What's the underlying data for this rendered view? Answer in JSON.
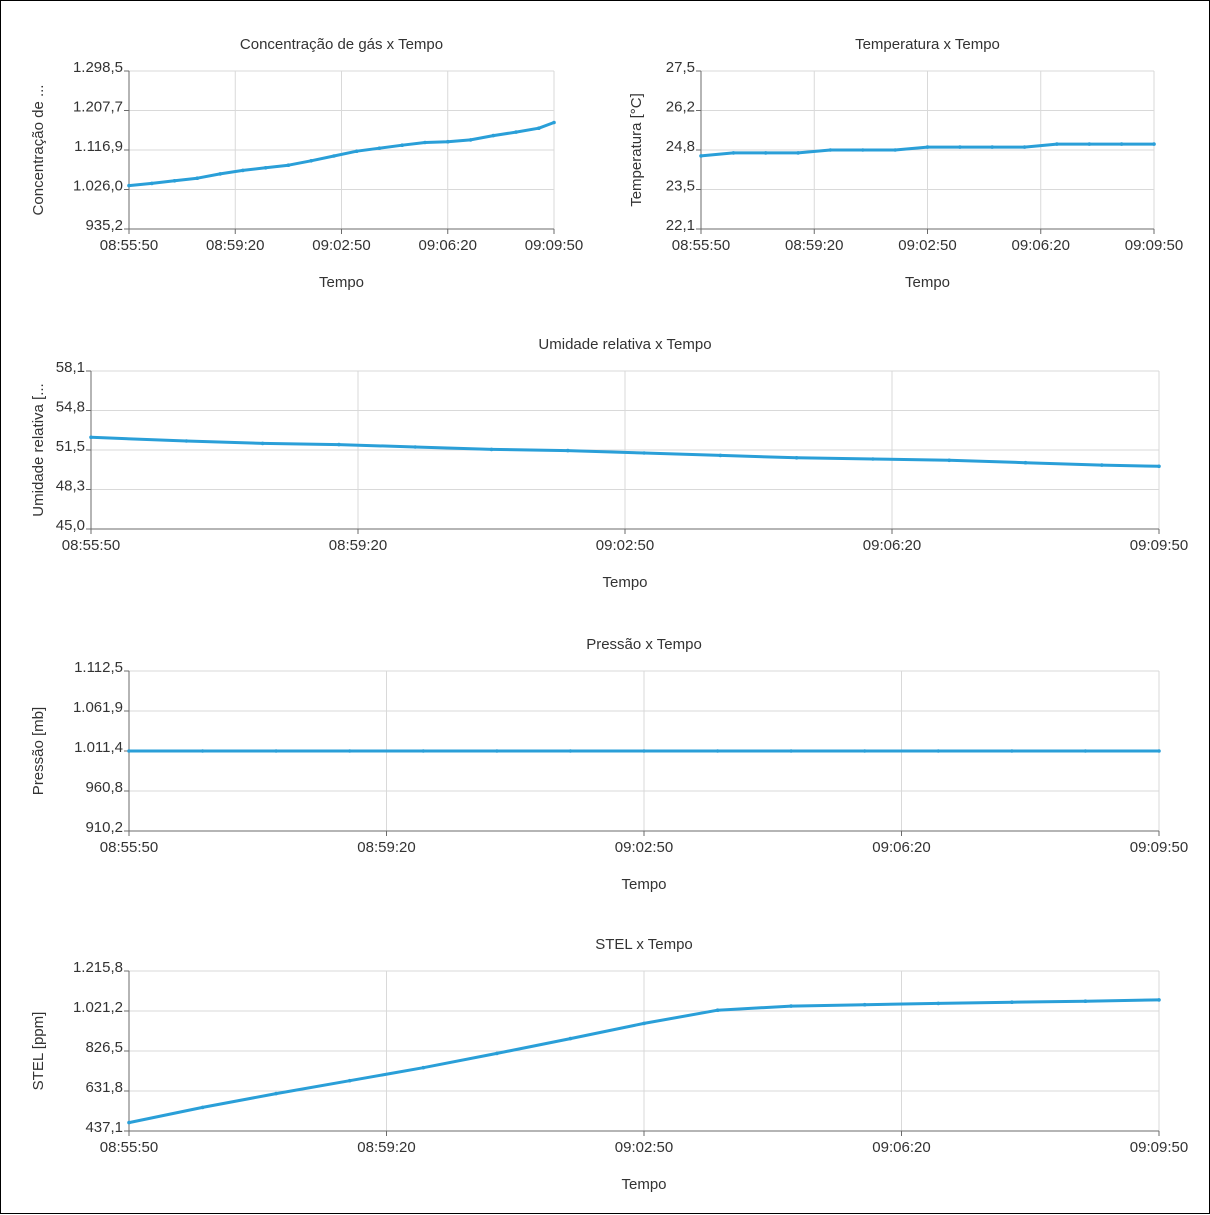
{
  "chart_data": [
    {
      "type": "line",
      "title": "Concentração de gás x Tempo",
      "xlabel": "Tempo",
      "ylabel": "Concentração de ...",
      "xticks": [
        "08:55:50",
        "08:59:20",
        "09:02:50",
        "09:06:20",
        "09:09:50"
      ],
      "yticks": [
        "935,2",
        "1.026,0",
        "1.116,9",
        "1.207,7",
        "1.298,5"
      ],
      "ylim": [
        935.2,
        1298.5
      ],
      "grid": true,
      "x": [
        "08:55:50",
        "08:56:35",
        "08:57:20",
        "08:58:05",
        "08:58:50",
        "08:59:35",
        "09:00:20",
        "09:01:05",
        "09:01:50",
        "09:02:35",
        "09:03:20",
        "09:04:05",
        "09:04:50",
        "09:05:35",
        "09:06:20",
        "09:07:05",
        "09:07:50",
        "09:08:35",
        "09:09:20",
        "09:09:50"
      ],
      "series": [
        {
          "values": [
            1035,
            1040,
            1046,
            1052,
            1062,
            1070,
            1076,
            1082,
            1092,
            1103,
            1114,
            1121,
            1128,
            1134,
            1136,
            1140,
            1150,
            1158,
            1167,
            1180
          ]
        }
      ]
    },
    {
      "type": "line",
      "title": "Temperatura x Tempo",
      "xlabel": "Tempo",
      "ylabel": "Temperatura [°C]",
      "xticks": [
        "08:55:50",
        "08:59:20",
        "09:02:50",
        "09:06:20",
        "09:09:50"
      ],
      "yticks": [
        "22,1",
        "23,5",
        "24,8",
        "26,2",
        "27,5"
      ],
      "ylim": [
        22.1,
        27.5
      ],
      "grid": true,
      "x": [
        "08:55:50",
        "08:56:50",
        "08:57:50",
        "08:58:50",
        "08:59:50",
        "09:00:50",
        "09:01:50",
        "09:02:50",
        "09:03:50",
        "09:04:50",
        "09:05:50",
        "09:06:50",
        "09:07:50",
        "09:08:50",
        "09:09:50"
      ],
      "series": [
        {
          "values": [
            24.6,
            24.7,
            24.7,
            24.7,
            24.8,
            24.8,
            24.8,
            24.9,
            24.9,
            24.9,
            24.9,
            25.0,
            25.0,
            25.0,
            25.0
          ]
        }
      ]
    },
    {
      "type": "line",
      "title": "Umidade relativa x Tempo",
      "xlabel": "Tempo",
      "ylabel": "Umidade relativa [...",
      "xticks": [
        "08:55:50",
        "08:59:20",
        "09:02:50",
        "09:06:20",
        "09:09:50"
      ],
      "yticks": [
        "45,0",
        "48,3",
        "51,5",
        "54,8",
        "58,1"
      ],
      "ylim": [
        45.0,
        58.1
      ],
      "grid": true,
      "x": [
        "08:55:50",
        "08:57:05",
        "08:58:05",
        "08:59:05",
        "09:00:05",
        "09:01:05",
        "09:02:05",
        "09:03:05",
        "09:04:05",
        "09:05:05",
        "09:06:05",
        "09:07:05",
        "09:08:05",
        "09:09:05",
        "09:09:50"
      ],
      "series": [
        {
          "values": [
            52.6,
            52.3,
            52.1,
            52.0,
            51.8,
            51.6,
            51.5,
            51.3,
            51.1,
            50.9,
            50.8,
            50.7,
            50.5,
            50.3,
            50.2
          ]
        }
      ]
    },
    {
      "type": "line",
      "title": "Pressão x Tempo",
      "xlabel": "Tempo",
      "ylabel": "Pressão [mb]",
      "xticks": [
        "08:55:50",
        "08:59:20",
        "09:02:50",
        "09:06:20",
        "09:09:50"
      ],
      "yticks": [
        "910,2",
        "960,8",
        "1.011,4",
        "1.061,9",
        "1.112,5"
      ],
      "ylim": [
        910.2,
        1112.5
      ],
      "grid": true,
      "x": [
        "08:55:50",
        "08:56:50",
        "08:57:50",
        "08:58:50",
        "08:59:50",
        "09:00:50",
        "09:01:50",
        "09:02:50",
        "09:03:50",
        "09:04:50",
        "09:05:50",
        "09:06:50",
        "09:07:50",
        "09:08:50",
        "09:09:50"
      ],
      "series": [
        {
          "values": [
            1011.4,
            1011.4,
            1011.4,
            1011.4,
            1011.4,
            1011.4,
            1011.4,
            1011.4,
            1011.4,
            1011.4,
            1011.4,
            1011.4,
            1011.4,
            1011.4,
            1011.4
          ]
        }
      ]
    },
    {
      "type": "line",
      "title": "STEL x Tempo",
      "xlabel": "Tempo",
      "ylabel": "STEL [ppm]",
      "xticks": [
        "08:55:50",
        "08:59:20",
        "09:02:50",
        "09:06:20",
        "09:09:50"
      ],
      "yticks": [
        "437,1",
        "631,8",
        "826,5",
        "1.021,2",
        "1.215,8"
      ],
      "ylim": [
        437.1,
        1215.8
      ],
      "grid": true,
      "x": [
        "08:55:50",
        "08:56:50",
        "08:57:50",
        "08:58:50",
        "08:59:50",
        "09:00:50",
        "09:01:50",
        "09:02:50",
        "09:03:50",
        "09:04:50",
        "09:05:50",
        "09:06:50",
        "09:07:50",
        "09:08:50",
        "09:09:50"
      ],
      "series": [
        {
          "values": [
            478,
            552,
            619,
            682,
            745,
            815,
            887,
            961,
            1025,
            1045,
            1052,
            1058,
            1064,
            1069,
            1075
          ]
        }
      ]
    }
  ]
}
